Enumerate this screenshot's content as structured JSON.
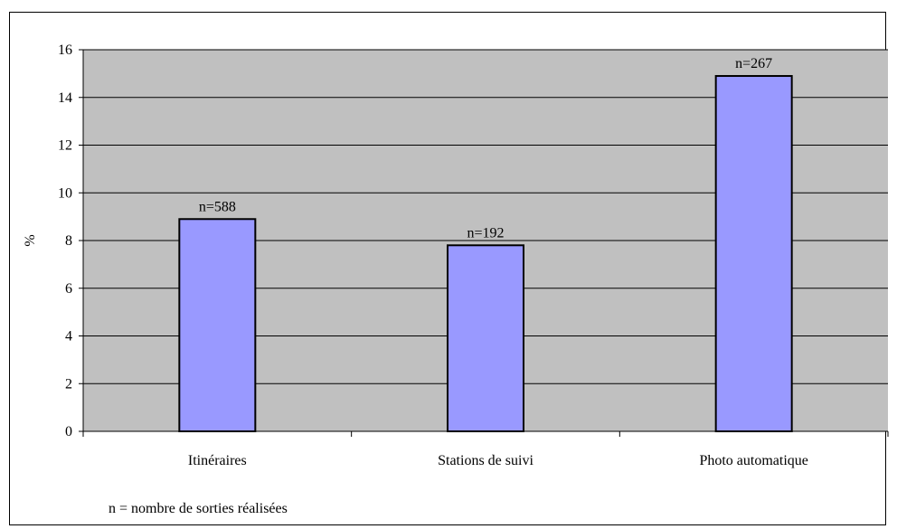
{
  "chart_data": {
    "type": "bar",
    "categories": [
      "Itinéraires",
      "Stations de suivi",
      "Photo automatique"
    ],
    "values": [
      8.9,
      7.8,
      14.9
    ],
    "data_labels": [
      "n=588",
      "n=192",
      "n=267"
    ],
    "title": "",
    "xlabel": "",
    "ylabel": "%",
    "ylim": [
      0,
      16
    ],
    "yticks": [
      0,
      2,
      4,
      6,
      8,
      10,
      12,
      14,
      16
    ],
    "grid": true,
    "legend": "none",
    "footnote": "n = nombre de sorties réalisées",
    "colors": {
      "bar_fill": "#9999ff",
      "bar_stroke": "#000000",
      "plot_background": "#c0c0c0",
      "gridline": "#000000"
    }
  }
}
